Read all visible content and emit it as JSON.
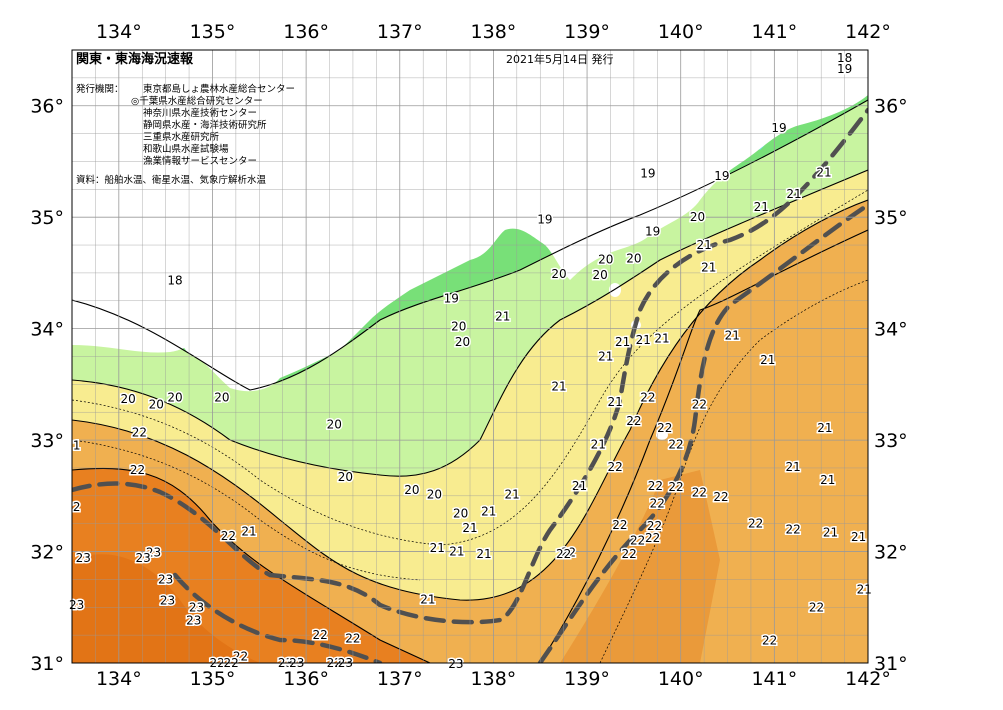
{
  "header": {
    "title": "関東・東海海況速報",
    "issued": "2021年5月14日 発行"
  },
  "info": {
    "issuer_label": "発行機関：",
    "issuers": [
      "東京都島しょ農林水産総合センター",
      "◎千葉県水産総合研究センター",
      "神奈川県水産技術センター",
      "静岡県水産・海洋技術研究所",
      "三重県水産研究所",
      "和歌山県水産試験場",
      "漁業情報サービスセンター"
    ],
    "source": "資料：船舶水温、衛星水温、気象庁解析水温"
  },
  "axes": {
    "lon_ticks": [
      "134°",
      "135°",
      "136°",
      "137°",
      "138°",
      "139°",
      "140°",
      "141°",
      "142°"
    ],
    "lat_ticks": [
      "36°",
      "35°",
      "34°",
      "33°",
      "32°",
      "31°"
    ],
    "lon_values": [
      134,
      135,
      136,
      137,
      138,
      139,
      140,
      141,
      142
    ],
    "lat_values": [
      36,
      35,
      34,
      33,
      32,
      31
    ],
    "lon_range": [
      133.5,
      142
    ],
    "lat_range": [
      31,
      36.5
    ],
    "grid": true
  },
  "colors": {
    "land": "#ffffff",
    "t17": "#70d8f0",
    "t18": "#a8e8f4",
    "t19": "#78e078",
    "t20": "#c8f4a0",
    "t21": "#f8ec90",
    "t22": "#f0b050",
    "t23": "#e88020",
    "kuroshio": "#505050"
  },
  "isotherm_labels": [
    {
      "text": "18",
      "lon": 141.75,
      "lat": 36.43
    },
    {
      "text": "19",
      "lon": 141.75,
      "lat": 36.33
    },
    {
      "text": "19",
      "lon": 141.05,
      "lat": 35.8
    },
    {
      "text": "19",
      "lon": 139.65,
      "lat": 35.39
    },
    {
      "text": "19",
      "lon": 140.44,
      "lat": 35.37
    },
    {
      "text": "19",
      "lon": 138.55,
      "lat": 34.98
    },
    {
      "text": "19",
      "lon": 139.7,
      "lat": 34.87
    },
    {
      "text": "18",
      "lon": 134.6,
      "lat": 34.43
    },
    {
      "text": "19",
      "lon": 137.55,
      "lat": 34.27
    },
    {
      "text": "20",
      "lon": 140.18,
      "lat": 35.0
    },
    {
      "text": "21",
      "lon": 140.86,
      "lat": 35.09
    },
    {
      "text": "21",
      "lon": 141.53,
      "lat": 35.4
    },
    {
      "text": "21",
      "lon": 141.21,
      "lat": 35.21
    },
    {
      "text": "21",
      "lon": 140.25,
      "lat": 34.75
    },
    {
      "text": "21",
      "lon": 140.3,
      "lat": 34.55
    },
    {
      "text": "20",
      "lon": 139.14,
      "lat": 34.48
    },
    {
      "text": "20",
      "lon": 139.2,
      "lat": 34.62
    },
    {
      "text": "20",
      "lon": 139.5,
      "lat": 34.63
    },
    {
      "text": "20",
      "lon": 138.7,
      "lat": 34.49
    },
    {
      "text": "20",
      "lon": 137.63,
      "lat": 34.02
    },
    {
      "text": "20",
      "lon": 137.67,
      "lat": 33.88
    },
    {
      "text": "21",
      "lon": 138.1,
      "lat": 34.11
    },
    {
      "text": "21",
      "lon": 139.38,
      "lat": 33.88
    },
    {
      "text": "21",
      "lon": 139.2,
      "lat": 33.75
    },
    {
      "text": "21",
      "lon": 139.6,
      "lat": 33.9
    },
    {
      "text": "21",
      "lon": 139.8,
      "lat": 33.91
    },
    {
      "text": "21",
      "lon": 140.55,
      "lat": 33.94
    },
    {
      "text": "21",
      "lon": 140.93,
      "lat": 33.72
    },
    {
      "text": "21",
      "lon": 138.7,
      "lat": 33.48
    },
    {
      "text": "21",
      "lon": 139.3,
      "lat": 33.34
    },
    {
      "text": "21",
      "lon": 139.12,
      "lat": 32.96
    },
    {
      "text": "21",
      "lon": 138.92,
      "lat": 32.59
    },
    {
      "text": "21",
      "lon": 141.54,
      "lat": 33.11
    },
    {
      "text": "21",
      "lon": 141.2,
      "lat": 32.76
    },
    {
      "text": "21",
      "lon": 141.57,
      "lat": 32.64
    },
    {
      "text": "21",
      "lon": 141.6,
      "lat": 32.17
    },
    {
      "text": "21",
      "lon": 141.9,
      "lat": 32.13
    },
    {
      "text": "21",
      "lon": 141.96,
      "lat": 31.66
    },
    {
      "text": "20",
      "lon": 134.1,
      "lat": 33.37
    },
    {
      "text": "20",
      "lon": 134.4,
      "lat": 33.32
    },
    {
      "text": "20",
      "lon": 134.6,
      "lat": 33.38
    },
    {
      "text": "20",
      "lon": 135.1,
      "lat": 33.38
    },
    {
      "text": "20",
      "lon": 136.3,
      "lat": 33.14
    },
    {
      "text": "20",
      "lon": 136.42,
      "lat": 32.67
    },
    {
      "text": "20",
      "lon": 137.13,
      "lat": 32.55
    },
    {
      "text": "20",
      "lon": 137.37,
      "lat": 32.51
    },
    {
      "text": "20",
      "lon": 137.65,
      "lat": 32.34
    },
    {
      "text": "20",
      "lon": 142.2,
      "lat": 32.63
    },
    {
      "text": "21",
      "lon": 138.2,
      "lat": 32.51
    },
    {
      "text": "21",
      "lon": 137.95,
      "lat": 32.36
    },
    {
      "text": "21",
      "lon": 137.75,
      "lat": 32.21
    },
    {
      "text": "21",
      "lon": 137.4,
      "lat": 32.03
    },
    {
      "text": "21",
      "lon": 137.61,
      "lat": 32.0
    },
    {
      "text": "21",
      "lon": 137.9,
      "lat": 31.98
    },
    {
      "text": "21",
      "lon": 135.39,
      "lat": 32.18
    },
    {
      "text": "21",
      "lon": 137.3,
      "lat": 31.57
    },
    {
      "text": "22",
      "lon": 134.22,
      "lat": 33.07
    },
    {
      "text": "22",
      "lon": 134.2,
      "lat": 32.73
    },
    {
      "text": "22",
      "lon": 135.17,
      "lat": 32.14
    },
    {
      "text": "22",
      "lon": 139.65,
      "lat": 33.38
    },
    {
      "text": "22",
      "lon": 139.5,
      "lat": 33.17
    },
    {
      "text": "22",
      "lon": 140.2,
      "lat": 33.32
    },
    {
      "text": "22",
      "lon": 139.95,
      "lat": 32.96
    },
    {
      "text": "22",
      "lon": 139.83,
      "lat": 33.11
    },
    {
      "text": "22",
      "lon": 139.3,
      "lat": 32.76
    },
    {
      "text": "22",
      "lon": 139.73,
      "lat": 32.59
    },
    {
      "text": "22",
      "lon": 139.95,
      "lat": 32.58
    },
    {
      "text": "22",
      "lon": 139.75,
      "lat": 32.43
    },
    {
      "text": "22",
      "lon": 140.2,
      "lat": 32.53
    },
    {
      "text": "22",
      "lon": 140.43,
      "lat": 32.49
    },
    {
      "text": "22",
      "lon": 139.72,
      "lat": 32.23
    },
    {
      "text": "22",
      "lon": 139.54,
      "lat": 32.1
    },
    {
      "text": "22",
      "lon": 139.7,
      "lat": 32.12
    },
    {
      "text": "22",
      "lon": 138.8,
      "lat": 31.99
    },
    {
      "text": "22",
      "lon": 139.35,
      "lat": 32.24
    },
    {
      "text": "22",
      "lon": 139.45,
      "lat": 31.98
    },
    {
      "text": "22",
      "lon": 140.8,
      "lat": 32.25
    },
    {
      "text": "22",
      "lon": 141.2,
      "lat": 32.2
    },
    {
      "text": "22",
      "lon": 138.75,
      "lat": 31.98
    },
    {
      "text": "22",
      "lon": 141.45,
      "lat": 31.5
    },
    {
      "text": "22",
      "lon": 140.95,
      "lat": 31.2
    },
    {
      "text": "22",
      "lon": 136.15,
      "lat": 31.25
    },
    {
      "text": "22",
      "lon": 136.5,
      "lat": 31.22
    },
    {
      "text": "22",
      "lon": 135.3,
      "lat": 31.06
    },
    {
      "text": "23",
      "lon": 133.62,
      "lat": 31.94
    },
    {
      "text": "23",
      "lon": 134.37,
      "lat": 31.99
    },
    {
      "text": "23",
      "lon": 134.26,
      "lat": 31.94
    },
    {
      "text": "23",
      "lon": 134.5,
      "lat": 31.75
    },
    {
      "text": "23",
      "lon": 134.52,
      "lat": 31.56
    },
    {
      "text": "23",
      "lon": 134.8,
      "lat": 31.38
    },
    {
      "text": "23",
      "lon": 133.55,
      "lat": 31.52
    },
    {
      "text": "23",
      "lon": 134.83,
      "lat": 31.5
    },
    {
      "text": "23",
      "lon": 135.78,
      "lat": 31.0
    },
    {
      "text": "23",
      "lon": 135.9,
      "lat": 31.0
    },
    {
      "text": "22",
      "lon": 136.3,
      "lat": 31.0
    },
    {
      "text": "23",
      "lon": 136.42,
      "lat": 31.0
    },
    {
      "text": "22",
      "lon": 135.05,
      "lat": 31.0
    },
    {
      "text": "23",
      "lon": 137.6,
      "lat": 30.99
    },
    {
      "text": "22",
      "lon": 135.2,
      "lat": 31.0
    },
    {
      "text": "2",
      "lon": 133.55,
      "lat": 32.4
    },
    {
      "text": "1",
      "lon": 133.55,
      "lat": 32.95
    }
  ]
}
